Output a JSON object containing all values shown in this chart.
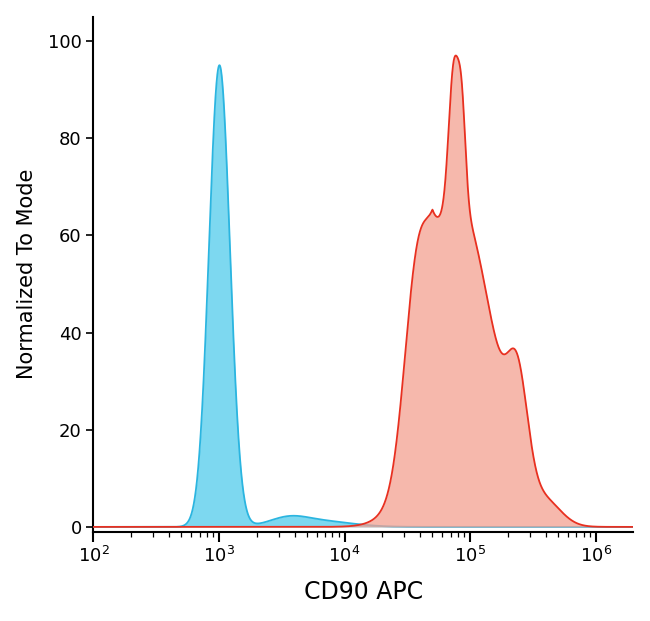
{
  "title": "",
  "xlabel": "CD90 APC",
  "ylabel": "Normalized To Mode",
  "xlim_log": [
    2,
    6.3
  ],
  "ylim": [
    -1,
    105
  ],
  "yticks": [
    0,
    20,
    40,
    60,
    80,
    100
  ],
  "blue_color_fill": "#7DD8F0",
  "blue_color_line": "#2BB5E0",
  "red_color_fill": "#F4A090",
  "red_color_line": "#E83020",
  "background_color": "#ffffff",
  "xlabel_fontsize": 17,
  "ylabel_fontsize": 15,
  "tick_fontsize": 13,
  "figure_width": 6.5,
  "figure_height": 6.21
}
